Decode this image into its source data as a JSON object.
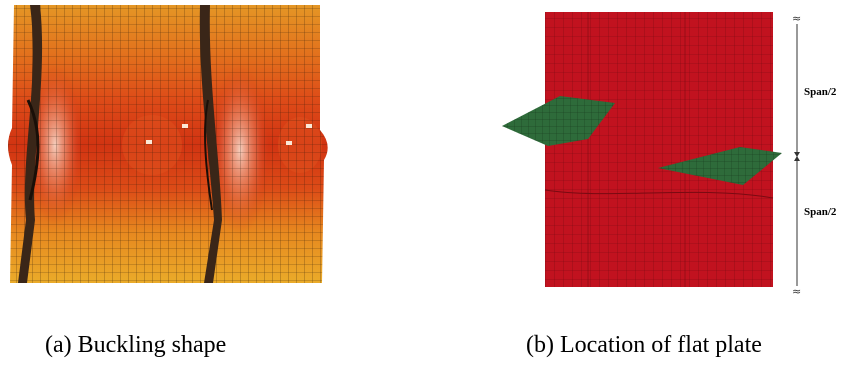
{
  "figure": {
    "panels": [
      {
        "id": "a",
        "caption": "(a) Buckling shape",
        "render": {
          "palette": {
            "deep_red": "#d23412",
            "orange_red": "#e4501a",
            "orange": "#e88422",
            "amber": "#e9a526",
            "light": "#f6d0b8",
            "stiffener": "#3a2618",
            "mesh_line": "#2a1708"
          }
        }
      },
      {
        "id": "b",
        "caption": "(b) Location of flat plate",
        "dimension_labels": {
          "upper": "Span/2",
          "lower": "Span/2"
        },
        "break_mark": "≈",
        "render": {
          "wall_color": "#c1121f",
          "wall_mesh": "#7a0a12",
          "plate_color": "#2e6b3a",
          "plate_mesh": "#15351c"
        }
      }
    ]
  }
}
